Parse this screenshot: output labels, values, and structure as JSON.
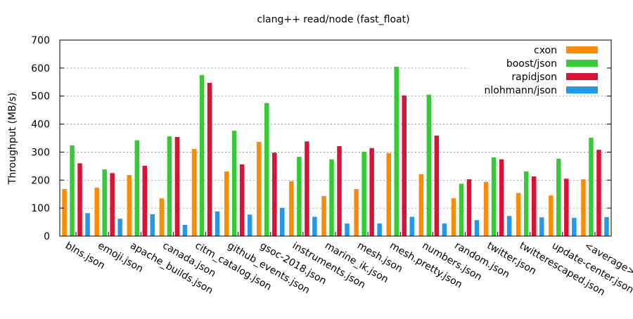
{
  "chart_data": {
    "type": "bar",
    "title": "clang++ read/node (fast_float)",
    "xlabel": "",
    "ylabel": "Throughput (MB/s)",
    "ylim": [
      0,
      700
    ],
    "yticks": [
      0,
      100,
      200,
      300,
      400,
      500,
      600,
      700
    ],
    "grid": "horizontal dotted",
    "legend_position": "top-right",
    "categories": [
      "blns.json",
      "emoji.json",
      "apache_builds.json",
      "canada.json",
      "citm_catalog.json",
      "github_events.json",
      "gsoc-2018.json",
      "instruments.json",
      "marine_ik.json",
      "mesh.json",
      "mesh.pretty.json",
      "numbers.json",
      "random.json",
      "twitter.json",
      "twitterescaped.json",
      "update-center.json",
      "<average>"
    ],
    "series": [
      {
        "name": "cxon",
        "color": "#ff8c00",
        "values": [
          168,
          173,
          218,
          135,
          311,
          231,
          336,
          196,
          143,
          168,
          296,
          221,
          135,
          194,
          154,
          145,
          203
        ]
      },
      {
        "name": "boost/json",
        "color": "#33cc33",
        "values": [
          324,
          238,
          342,
          356,
          575,
          376,
          475,
          283,
          274,
          301,
          605,
          505,
          187,
          281,
          231,
          276,
          351
        ]
      },
      {
        "name": "rapidjson",
        "color": "#dd1133",
        "values": [
          260,
          225,
          251,
          354,
          547,
          256,
          298,
          338,
          321,
          314,
          502,
          359,
          203,
          274,
          213,
          205,
          308
        ]
      },
      {
        "name": "nlohmann/json",
        "color": "#2299ee",
        "values": [
          82,
          62,
          78,
          40,
          88,
          77,
          101,
          69,
          45,
          45,
          69,
          45,
          57,
          72,
          67,
          65,
          68
        ]
      }
    ]
  }
}
